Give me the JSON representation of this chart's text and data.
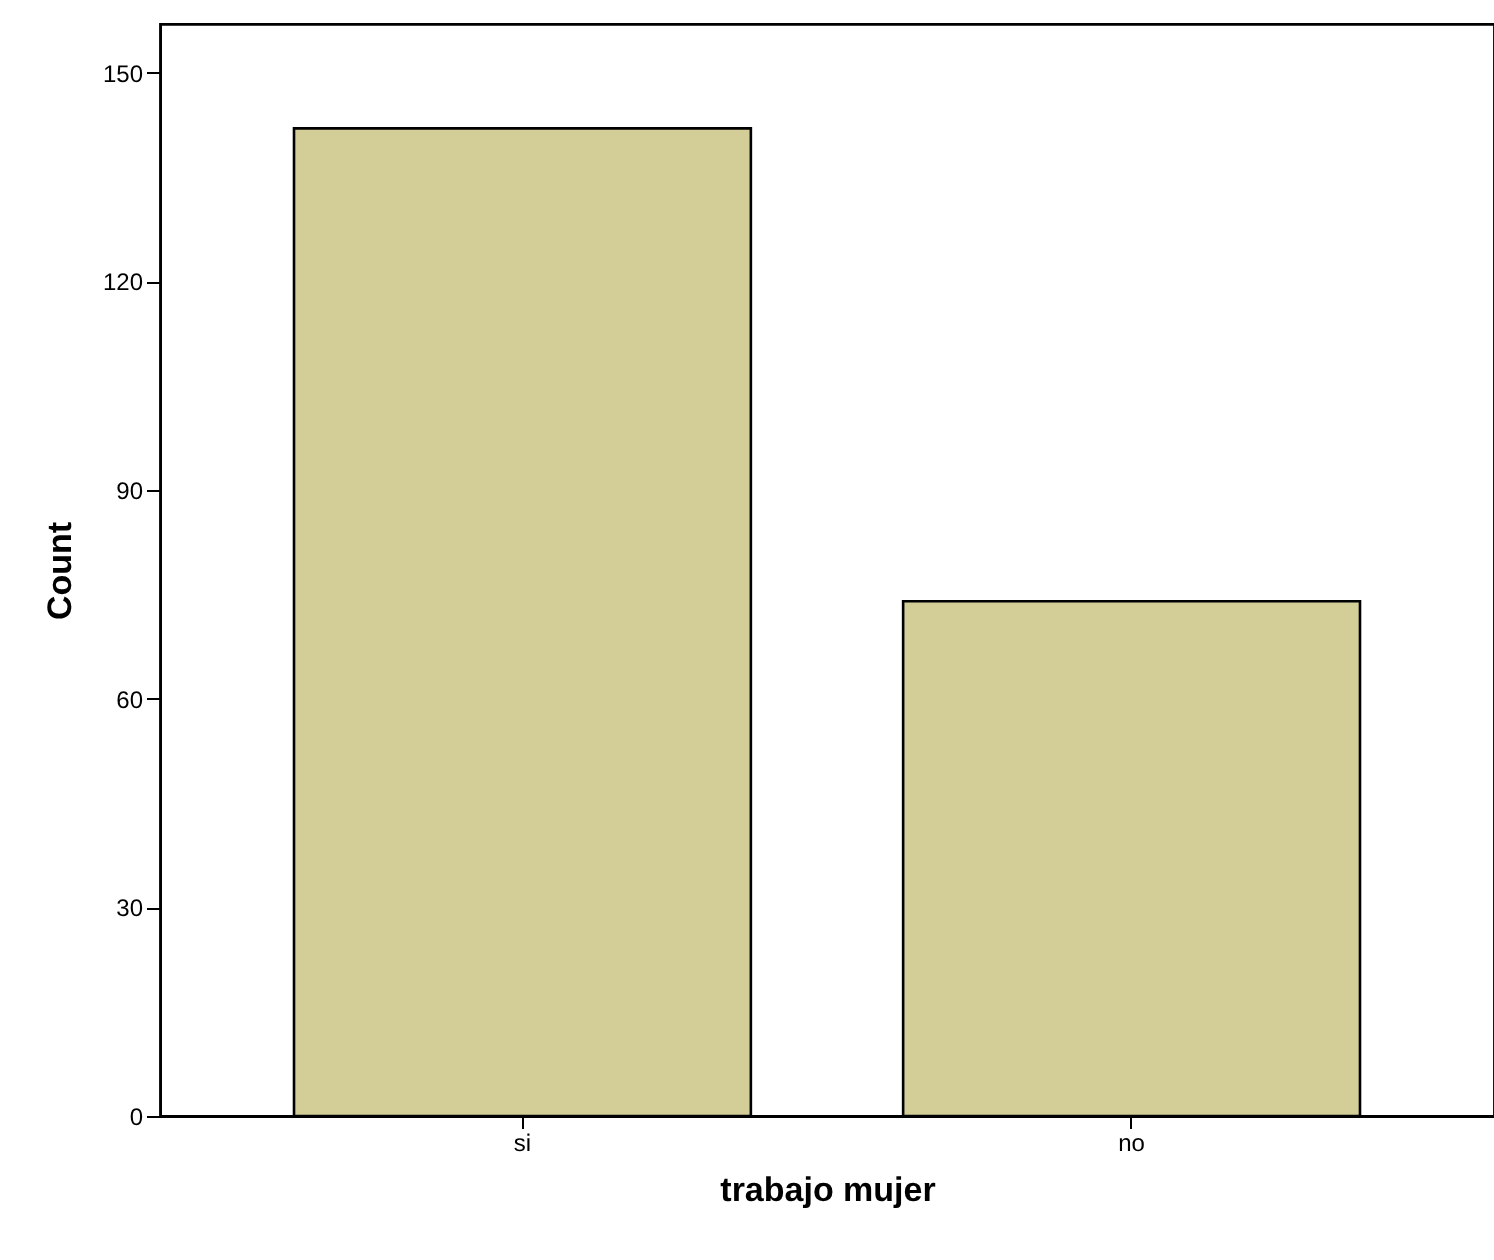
{
  "chart_data": {
    "type": "bar",
    "xlabel": "trabajo mujer",
    "ylabel": "Count",
    "categories": [
      "si",
      "no"
    ],
    "values": [
      142,
      74
    ],
    "color": "#d3ce97",
    "ylim": [
      0,
      157
    ],
    "yticks": [
      0,
      30,
      60,
      90,
      120,
      150
    ],
    "grid": false
  }
}
